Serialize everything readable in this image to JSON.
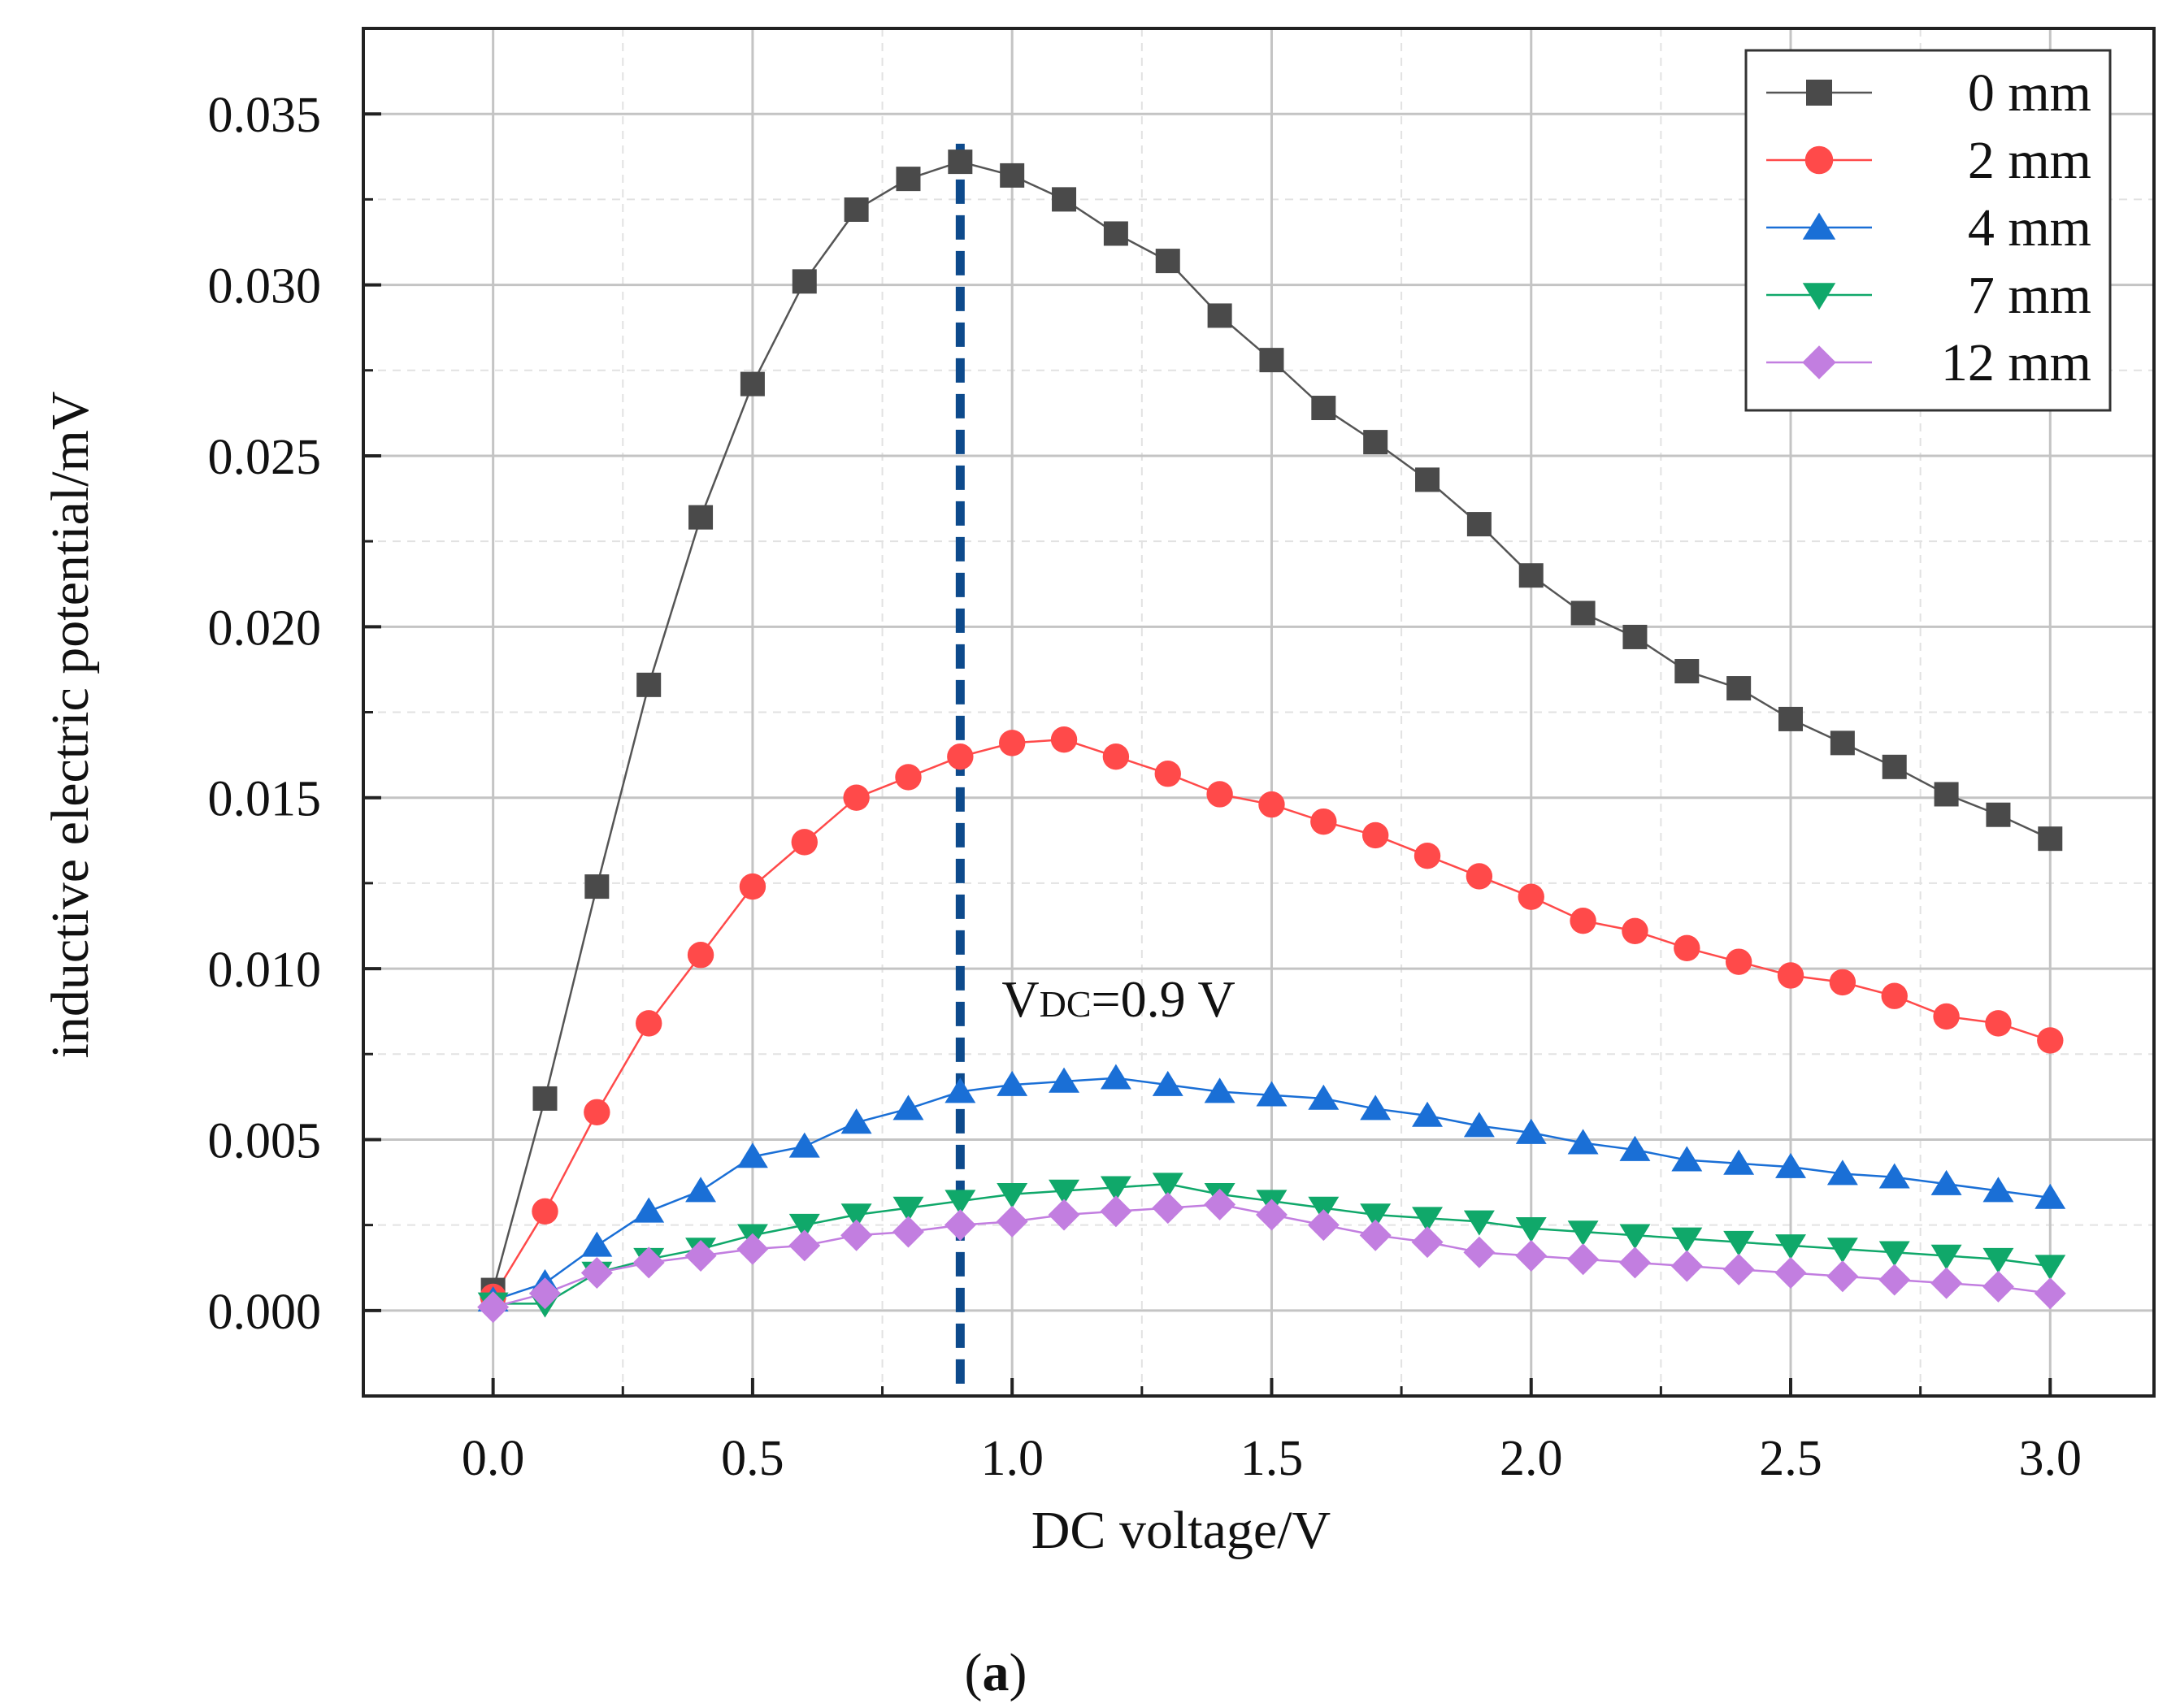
{
  "chart_data": {
    "type": "line",
    "xlabel": "DC voltage/V",
    "ylabel": "inductive electric potential/mV",
    "xlim": [
      -0.25,
      3.2
    ],
    "ylim": [
      -0.0025,
      0.0375
    ],
    "x_ticks": [
      "0.0",
      "0.5",
      "1.0",
      "1.5",
      "2.0",
      "2.5",
      "3.0"
    ],
    "x_tick_values": [
      0,
      0.5,
      1.0,
      1.5,
      2.0,
      2.5,
      3.0
    ],
    "y_ticks": [
      "0.000",
      "0.005",
      "0.010",
      "0.015",
      "0.020",
      "0.025",
      "0.030",
      "0.035"
    ],
    "y_tick_values": [
      0,
      0.005,
      0.01,
      0.015,
      0.02,
      0.025,
      0.03,
      0.035
    ],
    "grid": true,
    "legend_position": "top-right",
    "x": [
      0.0,
      0.1,
      0.2,
      0.3,
      0.4,
      0.5,
      0.6,
      0.7,
      0.8,
      0.9,
      1.0,
      1.1,
      1.2,
      1.3,
      1.4,
      1.5,
      1.6,
      1.7,
      1.8,
      1.9,
      2.0,
      2.1,
      2.2,
      2.3,
      2.4,
      2.5,
      2.6,
      2.7,
      2.8,
      2.9,
      3.0
    ],
    "series": [
      {
        "name": "0 mm",
        "color": "#4a4a4a",
        "line_color": "#555555",
        "marker": "square",
        "values": [
          0.0006,
          0.0062,
          0.0124,
          0.0183,
          0.0232,
          0.0271,
          0.0301,
          0.0322,
          0.0331,
          0.0336,
          0.0332,
          0.0325,
          0.0315,
          0.0307,
          0.0291,
          0.0278,
          0.0264,
          0.0254,
          0.0243,
          0.023,
          0.0215,
          0.0204,
          0.0197,
          0.0187,
          0.0182,
          0.0173,
          0.0166,
          0.0159,
          0.0151,
          0.0145,
          0.0138
        ]
      },
      {
        "name": "2 mm",
        "color": "#ff4a4a",
        "line_color": "#ff4a4a",
        "marker": "circle",
        "values": [
          0.0004,
          0.0029,
          0.0058,
          0.0084,
          0.0104,
          0.0124,
          0.0137,
          0.015,
          0.0156,
          0.0162,
          0.0166,
          0.0167,
          0.0162,
          0.0157,
          0.0151,
          0.0148,
          0.0143,
          0.0139,
          0.0133,
          0.0127,
          0.0121,
          0.0114,
          0.0111,
          0.0106,
          0.0102,
          0.0098,
          0.0096,
          0.0092,
          0.0086,
          0.0084,
          0.0079
        ]
      },
      {
        "name": "4 mm",
        "color": "#1a6fd6",
        "line_color": "#1a6fd6",
        "marker": "triangle-up",
        "values": [
          0.0003,
          0.0008,
          0.0019,
          0.0029,
          0.0035,
          0.0045,
          0.0048,
          0.0055,
          0.0059,
          0.0064,
          0.0066,
          0.0067,
          0.0068,
          0.0066,
          0.0064,
          0.0063,
          0.0062,
          0.0059,
          0.0057,
          0.0054,
          0.0052,
          0.0049,
          0.0047,
          0.0044,
          0.0043,
          0.0042,
          0.004,
          0.0039,
          0.0037,
          0.0035,
          0.0033
        ]
      },
      {
        "name": "7 mm",
        "color": "#10a86a",
        "line_color": "#10a86a",
        "marker": "triangle-down",
        "values": [
          0.0002,
          0.0002,
          0.0011,
          0.0015,
          0.0018,
          0.0022,
          0.0025,
          0.0028,
          0.003,
          0.0032,
          0.0034,
          0.0035,
          0.0036,
          0.0037,
          0.0034,
          0.0032,
          0.003,
          0.0028,
          0.0027,
          0.0026,
          0.0024,
          0.0023,
          0.0022,
          0.0021,
          0.002,
          0.0019,
          0.0018,
          0.0017,
          0.0016,
          0.0015,
          0.0013
        ]
      },
      {
        "name": "12 mm",
        "color": "#c27ee0",
        "line_color": "#c27ee0",
        "marker": "diamond",
        "values": [
          0.0001,
          0.0005,
          0.0011,
          0.0014,
          0.0016,
          0.0018,
          0.0019,
          0.0022,
          0.0023,
          0.0025,
          0.0026,
          0.0028,
          0.0029,
          0.003,
          0.0031,
          0.0028,
          0.0025,
          0.0022,
          0.002,
          0.0017,
          0.0016,
          0.0015,
          0.0014,
          0.0013,
          0.0012,
          0.0011,
          0.001,
          0.0009,
          0.0008,
          0.0007,
          0.0005
        ]
      }
    ],
    "reference_line": {
      "x": 0.9,
      "color": "#0d4a8c",
      "style": "dashed"
    },
    "annotation": {
      "main": "V",
      "subscript": "DC",
      "rest": "=0.9 V",
      "x": 0.98,
      "y": 0.0086
    }
  },
  "caption": {
    "open": "(",
    "letter": "a",
    "close": ")"
  }
}
